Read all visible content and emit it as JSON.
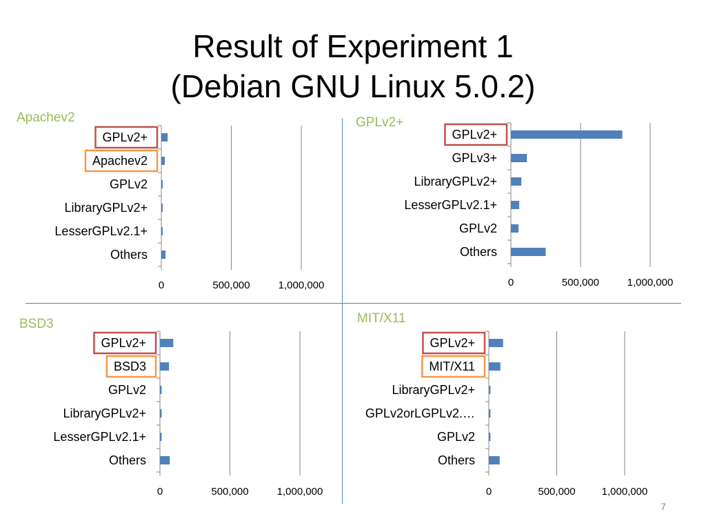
{
  "slide": {
    "title_line1": "Result of Experiment 1",
    "title_line2": "(Debian GNU Linux 5.0.2)",
    "page_number": "7"
  },
  "colors": {
    "bar": "#4f81bd",
    "grid": "#868686",
    "divider": "#4f81bd",
    "panel_title": "#9bbb59",
    "highlight_red": "#c0504d",
    "highlight_orange": "#f79646"
  },
  "chart_data": [
    {
      "type": "bar",
      "orientation": "horizontal",
      "title": "Apachev2",
      "categories": [
        "GPLv2+",
        "Apachev2",
        "GPLv2",
        "LibraryGPLv2+",
        "LesserGPLv2.1+",
        "Others"
      ],
      "values": [
        45000,
        25000,
        8000,
        6000,
        6000,
        30000
      ],
      "xlim": [
        0,
        1000000
      ],
      "xticks": [
        "0",
        "500,000",
        "1,000,000"
      ],
      "grid": true,
      "highlights": [
        {
          "category": "GPLv2+",
          "color": "red"
        },
        {
          "category": "Apachev2",
          "color": "orange"
        }
      ]
    },
    {
      "type": "bar",
      "orientation": "horizontal",
      "title": "GPLv2+",
      "categories": [
        "GPLv2+",
        "GPLv3+",
        "LibraryGPLv2+",
        "LesserGPLv2.1+",
        "GPLv2",
        "Others"
      ],
      "values": [
        800000,
        115000,
        75000,
        60000,
        55000,
        250000
      ],
      "xlim": [
        0,
        1000000
      ],
      "xticks": [
        "0",
        "500,000",
        "1,000,000"
      ],
      "grid": true,
      "highlights": [
        {
          "category": "GPLv2+",
          "color": "red"
        }
      ]
    },
    {
      "type": "bar",
      "orientation": "horizontal",
      "title": "BSD3",
      "categories": [
        "GPLv2+",
        "BSD3",
        "GPLv2",
        "LibraryGPLv2+",
        "LesserGPLv2.1+",
        "Others"
      ],
      "values": [
        95000,
        65000,
        12000,
        12000,
        12000,
        70000
      ],
      "xlim": [
        0,
        1000000
      ],
      "xticks": [
        "0",
        "500,000",
        "1,000,000"
      ],
      "grid": true,
      "highlights": [
        {
          "category": "GPLv2+",
          "color": "red"
        },
        {
          "category": "BSD3",
          "color": "orange"
        }
      ]
    },
    {
      "type": "bar",
      "orientation": "horizontal",
      "title": "MIT/X11",
      "categories": [
        "GPLv2+",
        "MIT/X11",
        "LibraryGPLv2+",
        "GPLv2orLGPLv2.…",
        "GPLv2",
        "Others"
      ],
      "values": [
        105000,
        85000,
        12000,
        12000,
        12000,
        80000
      ],
      "xlim": [
        0,
        1000000
      ],
      "xticks": [
        "0",
        "500,000",
        "1,000,000"
      ],
      "grid": true,
      "highlights": [
        {
          "category": "GPLv2+",
          "color": "red"
        },
        {
          "category": "MIT/X11",
          "color": "orange"
        }
      ]
    }
  ]
}
